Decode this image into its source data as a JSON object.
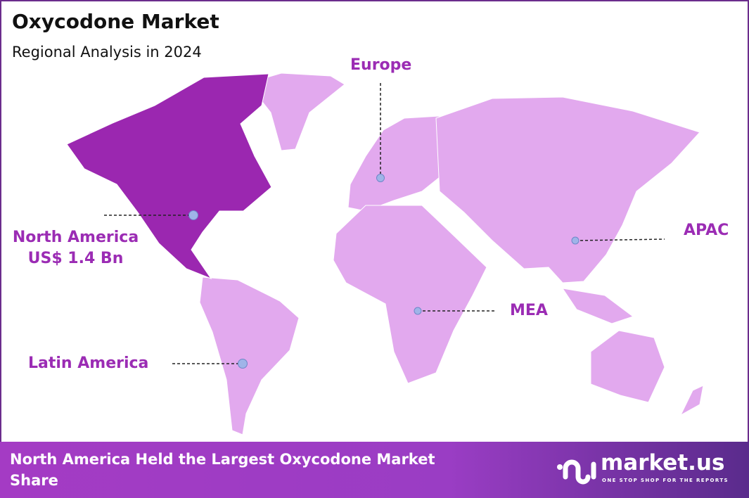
{
  "header": {
    "title": "Oxycodone Market",
    "subtitle": "Regional Analysis in 2024"
  },
  "colors": {
    "highlight_region": "#9b27b0",
    "other_regions": "#e2a9ee",
    "label": "#9b2cb4",
    "marker": "#9fb4e8",
    "border": "#6b2c8c"
  },
  "regions": [
    {
      "name": "North America",
      "value": "US$ 1.4 Bn",
      "highlighted": true
    },
    {
      "name": "Europe"
    },
    {
      "name": "APAC"
    },
    {
      "name": "MEA"
    },
    {
      "name": "Latin America"
    }
  ],
  "footer": {
    "text": "North America Held the Largest Oxycodone Market Share",
    "brand": "market.us",
    "tagline": "ONE STOP SHOP FOR THE REPORTS"
  }
}
